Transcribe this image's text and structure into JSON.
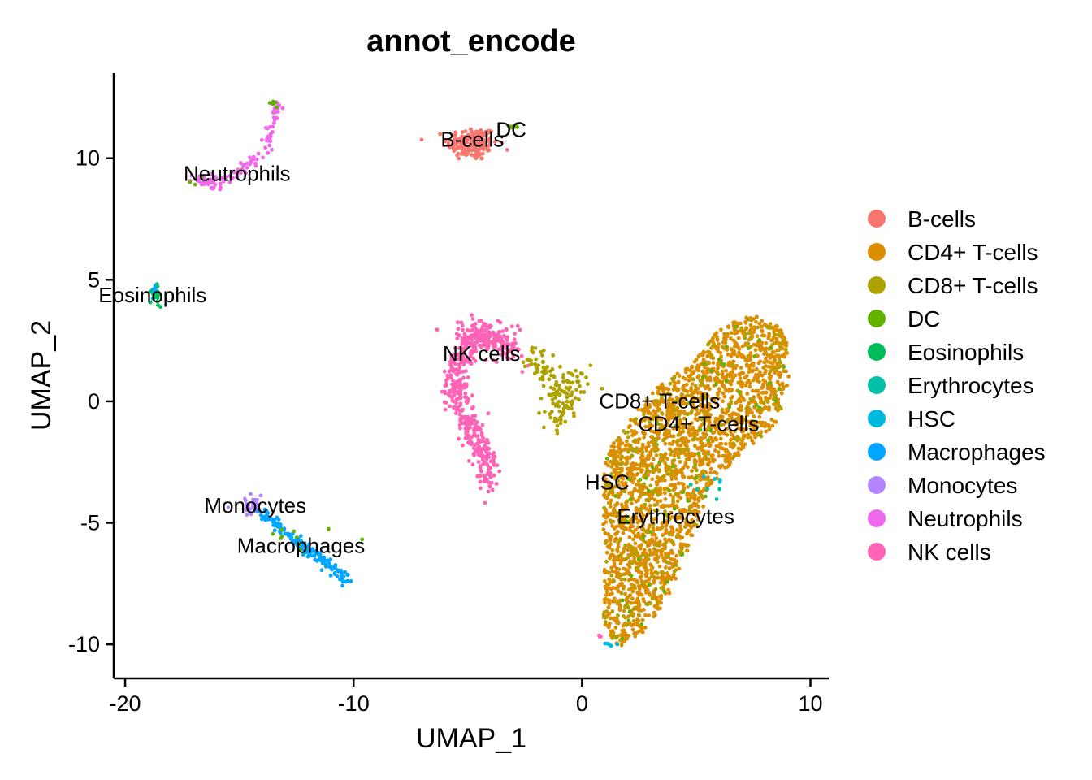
{
  "chart_data": {
    "type": "scatter",
    "title": "annot_encode",
    "xlabel": "UMAP_1",
    "ylabel": "UMAP_2",
    "xlim": [
      -20.5,
      10.8
    ],
    "ylim": [
      -11.4,
      13.5
    ],
    "x_ticks": [
      -20,
      -10,
      0,
      10
    ],
    "y_ticks": [
      -10,
      -5,
      0,
      5,
      10
    ],
    "x_tick_labels": [
      "-20",
      "-10",
      "0",
      "10"
    ],
    "y_tick_labels": [
      "-10",
      "-5",
      "0",
      "5",
      "10"
    ],
    "grid": false,
    "legend_position": "right",
    "series": [
      {
        "name": "B-cells",
        "color": "#F8766D"
      },
      {
        "name": "CD4+ T-cells",
        "color": "#DB8E00"
      },
      {
        "name": "CD8+ T-cells",
        "color": "#AEA200"
      },
      {
        "name": "DC",
        "color": "#64B200"
      },
      {
        "name": "Eosinophils",
        "color": "#00BD5C"
      },
      {
        "name": "Erythrocytes",
        "color": "#00C1A7"
      },
      {
        "name": "HSC",
        "color": "#00BADE"
      },
      {
        "name": "Macrophages",
        "color": "#00A6FF"
      },
      {
        "name": "Monocytes",
        "color": "#B385FF"
      },
      {
        "name": "Neutrophils",
        "color": "#EF67EB"
      },
      {
        "name": "NK cells",
        "color": "#FF63B6"
      }
    ],
    "clusters": [
      {
        "series": "B-cells",
        "shape": "blob",
        "x": -4.8,
        "y": 10.6,
        "sx": 0.55,
        "sy": 0.35,
        "n": 170
      },
      {
        "series": "DC",
        "shape": "blob",
        "x": -2.9,
        "y": 11.3,
        "sx": 0.2,
        "sy": 0.1,
        "n": 6
      },
      {
        "series": "Neutrophils",
        "shape": "path",
        "path": [
          [
            -17.1,
            9.1
          ],
          [
            -16.2,
            9.0
          ],
          [
            -15.2,
            9.4
          ],
          [
            -14.2,
            10.0
          ],
          [
            -13.6,
            11.0
          ],
          [
            -13.4,
            12.3
          ]
        ],
        "spread": 0.12,
        "n": 95
      },
      {
        "series": "Neutrophils",
        "shape": "blob",
        "x": -16.2,
        "y": 9.0,
        "sx": 0.3,
        "sy": 0.15,
        "n": 20
      },
      {
        "series": "DC",
        "shape": "blob",
        "x": -13.45,
        "y": 12.3,
        "sx": 0.1,
        "sy": 0.07,
        "n": 5
      },
      {
        "series": "DC",
        "shape": "blob",
        "x": -16.9,
        "y": 9.1,
        "sx": 0.3,
        "sy": 0.1,
        "n": 3
      },
      {
        "series": "Eosinophils",
        "shape": "blob",
        "x": -18.7,
        "y": 4.3,
        "sx": 0.12,
        "sy": 0.28,
        "n": 22
      },
      {
        "series": "Macrophages",
        "shape": "blob",
        "x": -18.75,
        "y": 4.6,
        "sx": 0.08,
        "sy": 0.12,
        "n": 6
      },
      {
        "series": "Monocytes",
        "shape": "blob",
        "x": -14.4,
        "y": -4.25,
        "sx": 0.3,
        "sy": 0.2,
        "n": 35
      },
      {
        "series": "Macrophages",
        "shape": "path",
        "path": [
          [
            -14.0,
            -4.6
          ],
          [
            -12.6,
            -5.6
          ],
          [
            -11.2,
            -6.7
          ],
          [
            -10.2,
            -7.35
          ]
        ],
        "spread": 0.13,
        "n": 150
      },
      {
        "series": "DC",
        "shape": "blob",
        "x": -12.8,
        "y": -5.5,
        "sx": 1.0,
        "sy": 0.5,
        "n": 10
      },
      {
        "series": "NK cells",
        "shape": "path",
        "path": [
          [
            -3.0,
            1.9
          ],
          [
            -3.8,
            2.5
          ],
          [
            -4.6,
            2.6
          ],
          [
            -5.3,
            1.8
          ],
          [
            -5.6,
            0.6
          ],
          [
            -5.1,
            -0.7
          ],
          [
            -4.5,
            -1.6
          ],
          [
            -4.2,
            -2.7
          ],
          [
            -4.1,
            -3.4
          ]
        ],
        "spread": 0.28,
        "n": 460
      },
      {
        "series": "NK cells",
        "shape": "blob",
        "x": -4.4,
        "y": 2.8,
        "sx": 0.7,
        "sy": 0.3,
        "n": 80
      },
      {
        "series": "CD8+ T-cells",
        "shape": "path",
        "path": [
          [
            -2.4,
            1.9
          ],
          [
            -1.5,
            1.1
          ],
          [
            -1.0,
            0.2
          ],
          [
            -1.1,
            -0.8
          ],
          [
            -0.2,
            0.8
          ],
          [
            0.5,
            0.6
          ]
        ],
        "spread": 0.32,
        "n": 150
      },
      {
        "series": "CD4+ T-cells",
        "shape": "region",
        "poly": [
          [
            4.8,
            1.5
          ],
          [
            6.0,
            3.0
          ],
          [
            7.5,
            3.6
          ],
          [
            8.8,
            3.0
          ],
          [
            9.2,
            1.5
          ],
          [
            8.6,
            -0.8
          ],
          [
            7.0,
            -2.2
          ],
          [
            5.6,
            -3.5
          ],
          [
            4.8,
            -5.8
          ],
          [
            3.8,
            -8.0
          ],
          [
            2.6,
            -9.6
          ],
          [
            1.6,
            -10.1
          ],
          [
            0.9,
            -9.2
          ],
          [
            1.0,
            -6.5
          ],
          [
            0.9,
            -4.5
          ],
          [
            1.0,
            -2.2
          ],
          [
            1.9,
            -1.1
          ],
          [
            2.6,
            -0.1
          ],
          [
            3.4,
            0.7
          ]
        ],
        "n": 2300
      },
      {
        "series": "CD8+ T-cells",
        "shape": "region",
        "poly": [
          [
            4.8,
            1.5
          ],
          [
            6.0,
            3.0
          ],
          [
            7.5,
            3.6
          ],
          [
            8.8,
            3.0
          ],
          [
            9.2,
            1.5
          ],
          [
            8.6,
            -0.8
          ],
          [
            7.0,
            -2.2
          ],
          [
            5.6,
            -3.5
          ],
          [
            4.8,
            -5.8
          ],
          [
            3.8,
            -8.0
          ],
          [
            2.6,
            -9.6
          ],
          [
            1.6,
            -10.1
          ],
          [
            0.9,
            -9.2
          ],
          [
            1.0,
            -6.5
          ],
          [
            0.9,
            -4.5
          ],
          [
            1.0,
            -2.2
          ],
          [
            1.9,
            -1.1
          ],
          [
            2.6,
            -0.1
          ],
          [
            3.4,
            0.7
          ]
        ],
        "n": 230
      },
      {
        "series": "DC",
        "shape": "region",
        "poly": [
          [
            4.8,
            1.5
          ],
          [
            6.0,
            3.0
          ],
          [
            7.5,
            3.6
          ],
          [
            8.8,
            3.0
          ],
          [
            9.2,
            1.5
          ],
          [
            8.6,
            -0.8
          ],
          [
            7.0,
            -2.2
          ],
          [
            5.6,
            -3.5
          ],
          [
            4.8,
            -5.8
          ],
          [
            3.8,
            -8.0
          ],
          [
            2.6,
            -9.6
          ],
          [
            1.6,
            -10.1
          ],
          [
            0.9,
            -9.2
          ],
          [
            1.0,
            -6.5
          ],
          [
            0.9,
            -4.5
          ],
          [
            1.0,
            -2.2
          ],
          [
            1.9,
            -1.1
          ],
          [
            2.6,
            -0.1
          ],
          [
            3.4,
            0.7
          ]
        ],
        "n": 60
      },
      {
        "series": "Erythrocytes",
        "shape": "blob",
        "x": 5.5,
        "y": -3.8,
        "sx": 0.5,
        "sy": 0.5,
        "n": 6
      },
      {
        "series": "HSC",
        "shape": "blob",
        "x": 1.3,
        "y": -10.0,
        "sx": 0.15,
        "sy": 0.05,
        "n": 6
      },
      {
        "series": "HSC",
        "shape": "blob",
        "x": 6.0,
        "y": -3.3,
        "sx": 0.3,
        "sy": 0.3,
        "n": 3
      },
      {
        "series": "NK cells",
        "shape": "blob",
        "x": 0.7,
        "y": -9.65,
        "sx": 0.08,
        "sy": 0.04,
        "n": 4
      }
    ],
    "annotations": [
      {
        "text": "B-cells",
        "x": -4.8,
        "y": 10.7
      },
      {
        "text": "DC",
        "x": -3.1,
        "y": 11.1
      },
      {
        "text": "Neutrophils",
        "x": -15.1,
        "y": 9.3
      },
      {
        "text": "Eosinophils",
        "x": -18.8,
        "y": 4.3
      },
      {
        "text": "NK cells",
        "x": -4.4,
        "y": 1.9
      },
      {
        "text": "CD8+ T-cells",
        "x": 3.4,
        "y": -0.05
      },
      {
        "text": "CD4+ T-cells",
        "x": 5.1,
        "y": -1.0
      },
      {
        "text": "HSC",
        "x": 1.1,
        "y": -3.4
      },
      {
        "text": "Erythrocytes",
        "x": 4.1,
        "y": -4.8
      },
      {
        "text": "Monocytes",
        "x": -14.3,
        "y": -4.35
      },
      {
        "text": "Macrophages",
        "x": -12.3,
        "y": -6.0
      }
    ]
  }
}
